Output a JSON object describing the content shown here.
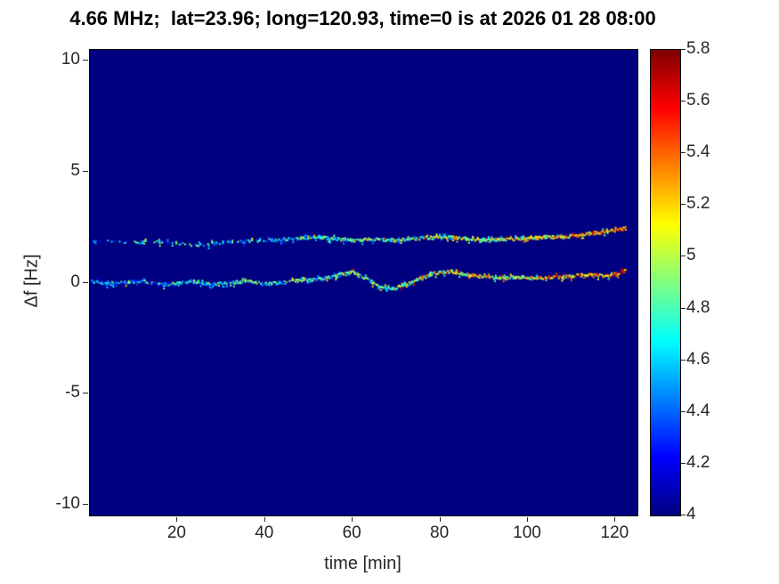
{
  "chart_data": {
    "type": "heatmap",
    "title": "4.66 MHz;  lat=23.96; long=120.93, time=0 is at 2026 01 28 08:00",
    "xlabel": "time [min]",
    "ylabel": "Δf [Hz]",
    "xlim": [
      0,
      125
    ],
    "ylim": [
      -10.5,
      10.5
    ],
    "xticks": [
      "20",
      "40",
      "60",
      "80",
      "100",
      "120"
    ],
    "yticks": [
      "-10",
      "-5",
      "0",
      "5",
      "10"
    ],
    "grid": false,
    "background_value": 4,
    "background_color": "#000080",
    "colorbar": {
      "min": 4,
      "max": 5.8,
      "ticks": [
        "4",
        "4.2",
        "4.4",
        "4.6",
        "4.8",
        "5",
        "5.2",
        "5.4",
        "5.6",
        "5.8"
      ],
      "colormap": "jet",
      "position": "right"
    },
    "traces": [
      {
        "name": "doppler-trace-near-0Hz",
        "points": [
          [
            0.5,
            0.05
          ],
          [
            4,
            -0.05
          ],
          [
            8,
            0.0
          ],
          [
            12,
            0.1
          ],
          [
            16,
            -0.1
          ],
          [
            20,
            -0.05
          ],
          [
            24,
            0.05
          ],
          [
            28,
            -0.1
          ],
          [
            32,
            0.0
          ],
          [
            36,
            0.05
          ],
          [
            40,
            -0.05
          ],
          [
            44,
            0.0
          ],
          [
            48,
            0.1
          ],
          [
            52,
            0.15
          ],
          [
            56,
            0.3
          ],
          [
            60,
            0.45
          ],
          [
            63,
            0.2
          ],
          [
            66,
            -0.15
          ],
          [
            69,
            -0.3
          ],
          [
            72,
            -0.1
          ],
          [
            75,
            0.1
          ],
          [
            78,
            0.4
          ],
          [
            82,
            0.5
          ],
          [
            86,
            0.35
          ],
          [
            90,
            0.25
          ],
          [
            94,
            0.2
          ],
          [
            98,
            0.25
          ],
          [
            102,
            0.2
          ],
          [
            106,
            0.25
          ],
          [
            110,
            0.3
          ],
          [
            114,
            0.35
          ],
          [
            118,
            0.3
          ],
          [
            121,
            0.45
          ],
          [
            122.5,
            0.55
          ]
        ],
        "value_points": [
          [
            0,
            4.55
          ],
          [
            20,
            4.6
          ],
          [
            40,
            4.7
          ],
          [
            60,
            4.85
          ],
          [
            70,
            4.9
          ],
          [
            80,
            5.0
          ],
          [
            90,
            5.05
          ],
          [
            100,
            5.1
          ],
          [
            110,
            5.3
          ],
          [
            122.5,
            5.35
          ]
        ],
        "density_points": [
          [
            0,
            0.85
          ],
          [
            40,
            0.9
          ],
          [
            122.5,
            0.97
          ]
        ]
      },
      {
        "name": "doppler-trace-near-2Hz",
        "points": [
          [
            0.5,
            1.85
          ],
          [
            5,
            1.9
          ],
          [
            10,
            1.8
          ],
          [
            15,
            1.85
          ],
          [
            20,
            1.75
          ],
          [
            25,
            1.7
          ],
          [
            30,
            1.8
          ],
          [
            35,
            1.85
          ],
          [
            40,
            1.9
          ],
          [
            45,
            1.95
          ],
          [
            50,
            2.05
          ],
          [
            55,
            2.0
          ],
          [
            60,
            1.9
          ],
          [
            65,
            1.95
          ],
          [
            70,
            1.9
          ],
          [
            75,
            2.0
          ],
          [
            80,
            2.05
          ],
          [
            85,
            2.0
          ],
          [
            90,
            1.9
          ],
          [
            95,
            1.95
          ],
          [
            100,
            2.0
          ],
          [
            105,
            2.05
          ],
          [
            110,
            2.1
          ],
          [
            114,
            2.2
          ],
          [
            118,
            2.3
          ],
          [
            121,
            2.4
          ],
          [
            122.5,
            2.45
          ]
        ],
        "value_points": [
          [
            0,
            4.5
          ],
          [
            20,
            4.55
          ],
          [
            40,
            4.6
          ],
          [
            55,
            4.8
          ],
          [
            70,
            4.85
          ],
          [
            85,
            4.95
          ],
          [
            100,
            5.05
          ],
          [
            112,
            5.2
          ],
          [
            122.5,
            5.3
          ]
        ],
        "density_points": [
          [
            0,
            0.3
          ],
          [
            15,
            0.35
          ],
          [
            30,
            0.45
          ],
          [
            40,
            0.6
          ],
          [
            50,
            0.85
          ],
          [
            70,
            0.9
          ],
          [
            122.5,
            0.95
          ]
        ]
      }
    ]
  }
}
